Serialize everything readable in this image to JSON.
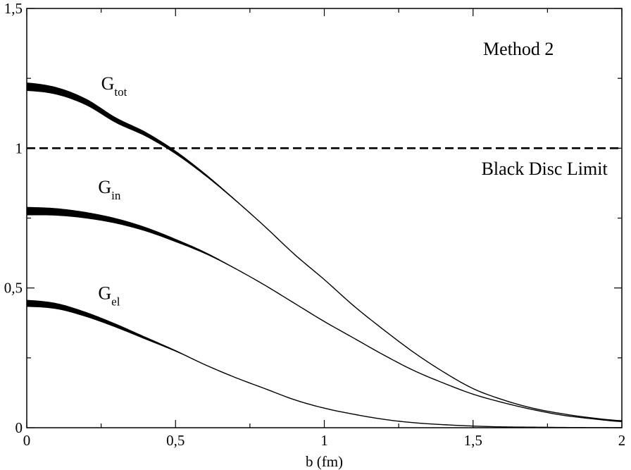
{
  "chart_data": {
    "type": "line",
    "title": "",
    "xlabel": "b (fm)",
    "ylabel": "",
    "xlim": [
      0,
      2
    ],
    "ylim": [
      0,
      1.5
    ],
    "x_ticks": [
      {
        "value": 0,
        "label": "0"
      },
      {
        "value": 0.5,
        "label": "0,5"
      },
      {
        "value": 1,
        "label": "1"
      },
      {
        "value": 1.5,
        "label": "1,5"
      },
      {
        "value": 2,
        "label": "2"
      }
    ],
    "y_ticks": [
      {
        "value": 0,
        "label": "0"
      },
      {
        "value": 0.5,
        "label": "0,5"
      },
      {
        "value": 1,
        "label": "1"
      },
      {
        "value": 1.5,
        "label": "1,5"
      }
    ],
    "grid": false,
    "method_label": "Method 2",
    "series": [
      {
        "name": "G_tot",
        "label_main": "G",
        "label_sub": "tot",
        "label_at": [
          0.25,
          1.21
        ],
        "band_until": 0.8,
        "band_width_at_0": 0.03,
        "x": [
          0,
          0.1,
          0.2,
          0.3,
          0.4,
          0.5,
          0.6,
          0.7,
          0.8,
          0.9,
          1.0,
          1.1,
          1.2,
          1.3,
          1.4,
          1.5,
          1.6,
          1.7,
          1.8,
          1.9,
          2.0
        ],
        "values": [
          1.22,
          1.205,
          1.165,
          1.1,
          1.05,
          0.985,
          0.905,
          0.815,
          0.72,
          0.62,
          0.53,
          0.435,
          0.35,
          0.27,
          0.2,
          0.14,
          0.1,
          0.07,
          0.05,
          0.035,
          0.025
        ]
      },
      {
        "name": "G_in",
        "label_main": "G",
        "label_sub": "in",
        "label_at": [
          0.24,
          0.84
        ],
        "band_until": 0.75,
        "band_width_at_0": 0.03,
        "x": [
          0,
          0.1,
          0.2,
          0.3,
          0.4,
          0.5,
          0.6,
          0.7,
          0.8,
          0.9,
          1.0,
          1.1,
          1.2,
          1.3,
          1.4,
          1.5,
          1.6,
          1.7,
          1.8,
          1.9,
          2.0
        ],
        "values": [
          0.775,
          0.772,
          0.76,
          0.74,
          0.71,
          0.67,
          0.625,
          0.57,
          0.51,
          0.445,
          0.38,
          0.32,
          0.26,
          0.205,
          0.16,
          0.12,
          0.09,
          0.065,
          0.045,
          0.032,
          0.022
        ]
      },
      {
        "name": "G_el",
        "label_main": "G",
        "label_sub": "el",
        "label_at": [
          0.24,
          0.46
        ],
        "band_until": 0.6,
        "band_width_at_0": 0.025,
        "x": [
          0,
          0.1,
          0.2,
          0.3,
          0.4,
          0.5,
          0.6,
          0.7,
          0.8,
          0.9,
          1.0,
          1.1,
          1.2,
          1.3,
          1.4,
          1.5,
          1.6,
          1.7,
          1.8,
          1.9,
          2.0
        ],
        "values": [
          0.445,
          0.435,
          0.405,
          0.365,
          0.32,
          0.275,
          0.225,
          0.18,
          0.14,
          0.1,
          0.07,
          0.048,
          0.03,
          0.018,
          0.011,
          0.006,
          0.003,
          0.002,
          0.001,
          0.0005,
          0.0002
        ]
      }
    ],
    "reference_line": {
      "name": "Black Disc Limit",
      "y": 1.0,
      "style": "dashed",
      "label": "Black Disc Limit",
      "label_at": [
        1.74,
        0.93
      ]
    }
  }
}
